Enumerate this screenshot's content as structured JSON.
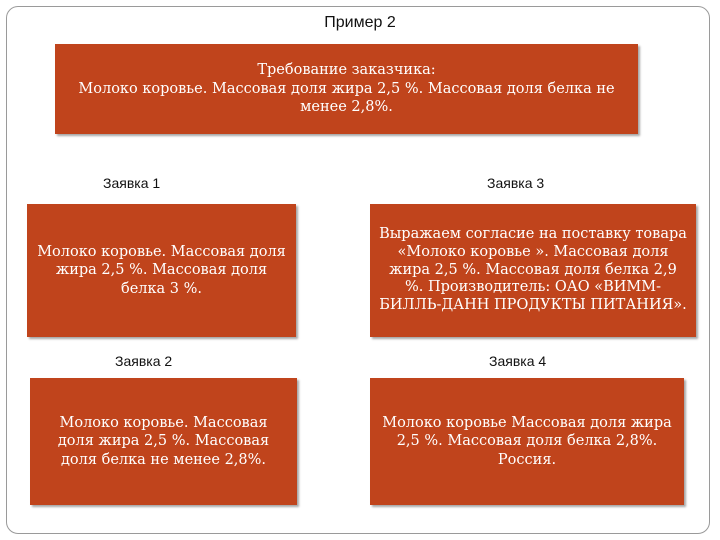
{
  "title": "Пример 2",
  "requirement": {
    "line1": "Требование заказчика:",
    "line2": "Молоко коровье. Массовая доля жира 2,5 %. Массовая доля белка не менее 2,8%."
  },
  "applications": [
    {
      "label": "Заявка 1",
      "text": "Молоко коровье. Массовая доля жира 2,5 %. Массовая доля белка 3 %."
    },
    {
      "label": "Заявка 2",
      "text": "Молоко коровье. Массовая доля жира 2,5 %. Массовая доля белка не менее 2,8%."
    },
    {
      "label": "Заявка 3",
      "text": "Выражаем согласие на поставку товара «Молоко коровье ». Массовая доля жира 2,5 %. Массовая доля белка 2,9 %. Производитель: ОАО «ВИММ-БИЛЛЬ-ДАНН ПРОДУКТЫ ПИТАНИЯ»."
    },
    {
      "label": "Заявка 4",
      "text": "Молоко коровье Массовая доля жира 2,5 %. Массовая доля белка 2,8%. Россия."
    }
  ],
  "colors": {
    "box_fill": "#c0441c",
    "box_text": "#ffffff",
    "frame_border": "#9a9a9a"
  }
}
